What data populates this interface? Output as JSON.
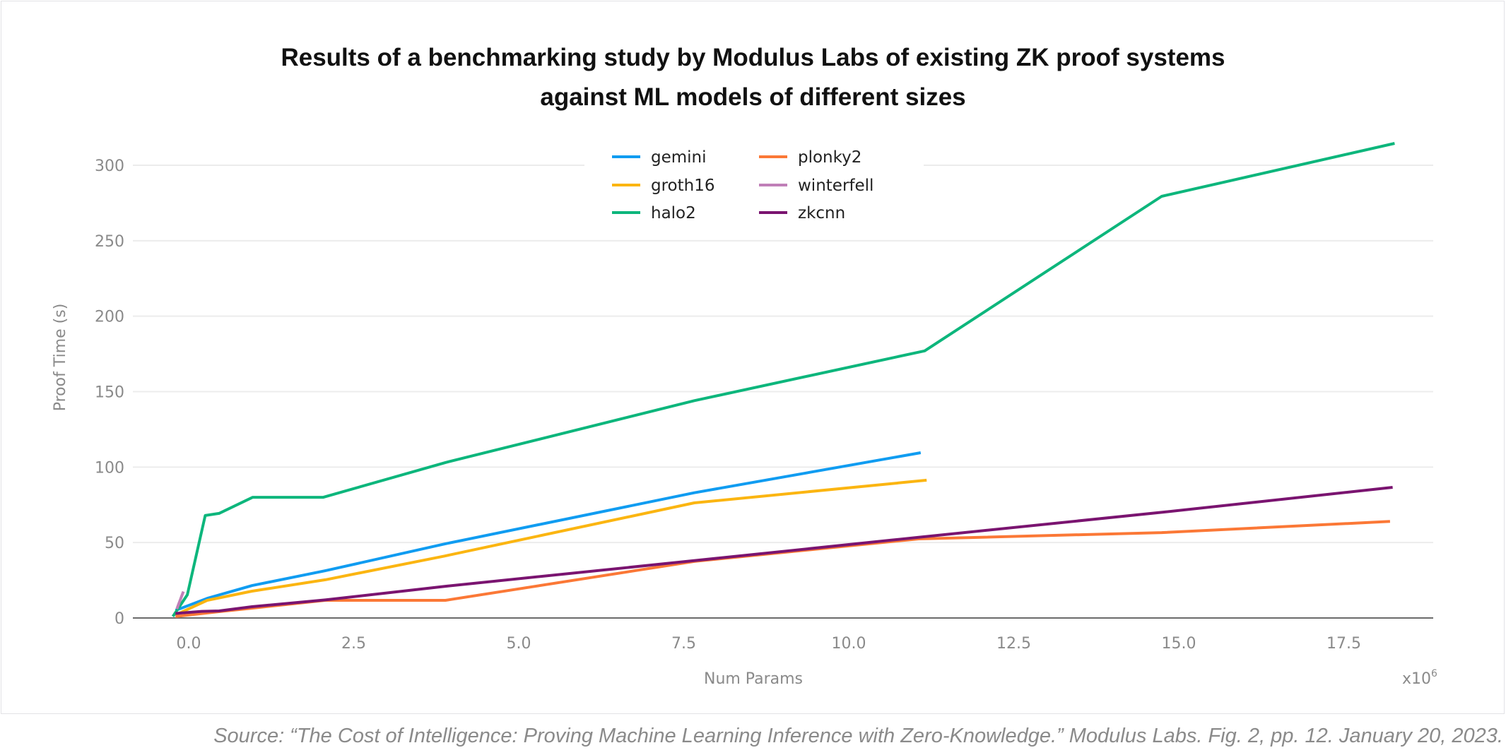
{
  "chart_data": {
    "type": "line",
    "title_lines": [
      "Results of a benchmarking study by Modulus Labs of existing ZK proof systems",
      "against ML models of different sizes"
    ],
    "xlabel": "Num Params",
    "x_multiplier": "x10",
    "x_multiplier_exp": "6",
    "ylabel": "Proof Time (s)",
    "xlim": [
      -0.85,
      18.8
    ],
    "ylim": [
      0,
      300
    ],
    "x_ticks": [
      0.0,
      2.5,
      5.0,
      7.5,
      10.0,
      12.5,
      15.0,
      17.5
    ],
    "x_tick_labels": [
      "0.0",
      "2.5",
      "5.0",
      "7.5",
      "10.0",
      "12.5",
      "15.0",
      "17.5"
    ],
    "y_ticks": [
      0,
      50,
      100,
      150,
      200,
      250,
      300
    ],
    "y_tick_labels": [
      "0",
      "50",
      "100",
      "150",
      "200",
      "250",
      "300"
    ],
    "grid": "horizontal",
    "legend_position": "top-center",
    "series": [
      {
        "name": "gemini",
        "color": "#109cf1",
        "x": [
          -0.2,
          0.28,
          0.96,
          2.07,
          3.87,
          7.66,
          11.09
        ],
        "y": [
          5,
          13,
          21.5,
          31.3,
          49,
          83,
          109.5
        ]
      },
      {
        "name": "groth16",
        "color": "#fbb511",
        "x": [
          -0.2,
          0.28,
          0.96,
          2.07,
          3.87,
          7.66,
          11.18
        ],
        "y": [
          2,
          11.7,
          17.8,
          25.3,
          41,
          76.3,
          91.3
        ]
      },
      {
        "name": "halo2",
        "color": "#0db67c",
        "x": [
          -0.24,
          -0.02,
          0.25,
          0.46,
          0.97,
          2.04,
          3.89,
          7.66,
          11.15,
          14.74,
          18.27
        ],
        "y": [
          1,
          15.4,
          67.9,
          69.3,
          80,
          80,
          103,
          144,
          177,
          279.4,
          314.5
        ]
      },
      {
        "name": "plonky2",
        "color": "#fb7836",
        "x": [
          -0.2,
          0.46,
          0.96,
          2.07,
          3.89,
          7.66,
          11.06,
          14.74,
          18.2
        ],
        "y": [
          1,
          4.2,
          6.5,
          11.7,
          11.7,
          37.5,
          52.4,
          56.6,
          64
        ]
      },
      {
        "name": "winterfell",
        "color": "#c07fb8",
        "x": [
          -0.18,
          -0.08
        ],
        "y": [
          6,
          17.5
        ]
      },
      {
        "name": "zkcnn",
        "color": "#7a1470",
        "x": [
          -0.2,
          0.2,
          0.46,
          0.96,
          2.07,
          3.89,
          7.66,
          11.06,
          14.74,
          18.24
        ],
        "y": [
          3,
          4.4,
          4.7,
          7.5,
          12,
          21,
          38,
          53.5,
          70,
          86.6
        ]
      }
    ]
  },
  "caption": "Source: “The Cost of Intelligence: Proving Machine Learning Inference with Zero-Knowledge.” Modulus Labs. Fig. 2, pp. 12. January 20, 2023."
}
